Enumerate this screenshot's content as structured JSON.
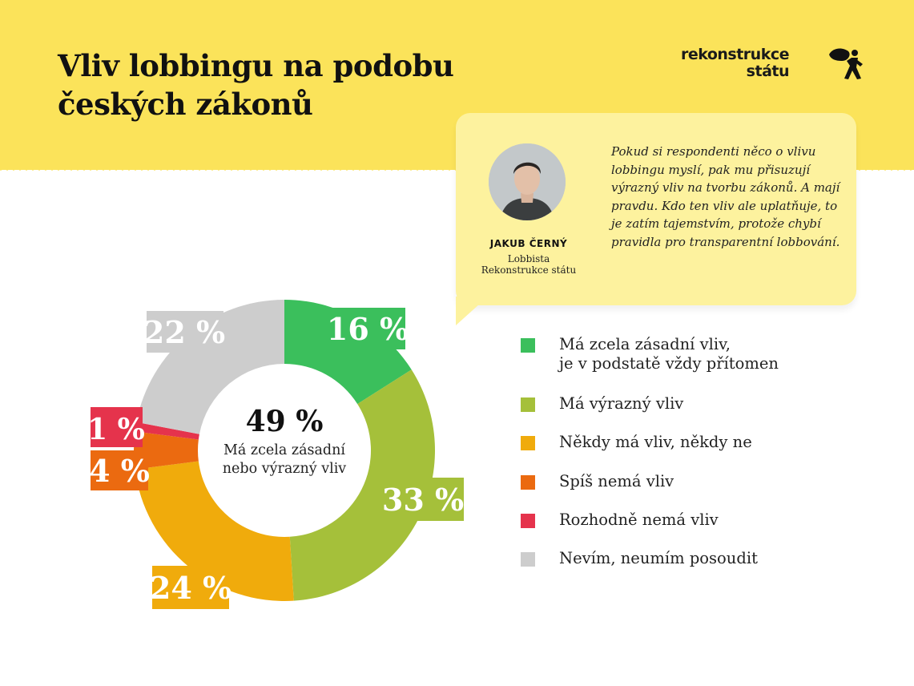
{
  "header": {
    "title": "Vliv lobbingu na podobu českých zákonů",
    "logo": {
      "line1": "rekonstrukce",
      "line2": "státu",
      "icon": "person-carrying-bag-icon"
    }
  },
  "quote": {
    "name": "JAKUB ČERNÝ",
    "role_line1": "Lobbista",
    "role_line2": "Rekonstrukce státu",
    "text": "Pokud si respondenti něco o vlivu lobbingu myslí, pak mu přisuzují výrazný vliv na tvorbu zákonů. A mají pravdu. Kdo ten vliv ale uplatňuje, to je zatím tajemstvím, protože chybí pravidla pro transparentní lobbování."
  },
  "colors": {
    "background_band": "#fbe35a",
    "quote_box": "#fdf29e"
  },
  "chart_data": {
    "type": "pie",
    "donut": true,
    "categories": [
      "Má zcela zásadní vliv,\nje v podstatě vždy přítomen",
      "Má výrazný vliv",
      "Někdy má vliv, někdy ne",
      "Spíš nemá vliv",
      "Rozhodně nemá vliv",
      "Nevím, neumím posoudit"
    ],
    "values": [
      16,
      33,
      24,
      4,
      1,
      22
    ],
    "labels": [
      "16 %",
      "33 %",
      "24 %",
      "4 %",
      "1 %",
      "22 %"
    ],
    "colors": [
      "#3bbf5c",
      "#a5c03a",
      "#f0ab0c",
      "#eb6a10",
      "#e5334c",
      "#cdcdcd"
    ],
    "center_value": "49 %",
    "center_text_line1": "Má zcela zásadní",
    "center_text_line2": "nebo výrazný vliv",
    "legend_position": "right"
  }
}
